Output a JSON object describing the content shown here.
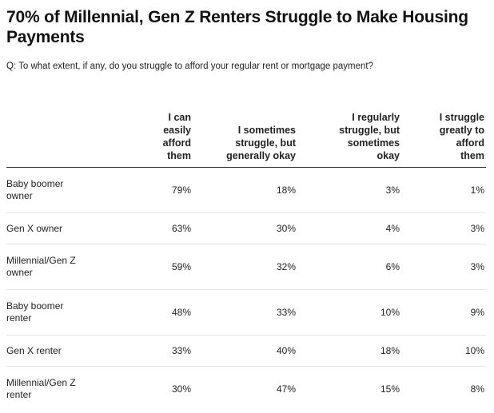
{
  "title": "70% of Millennial, Gen Z Renters Struggle to Make Housing Payments",
  "subtitle": "Q: To what extent, if any, do you struggle to afford your regular rent or mortgage payment?",
  "chart_data": {
    "type": "table",
    "title": "70% of Millennial, Gen Z Renters Struggle to Make Housing Payments",
    "subtitle": "Q: To what extent, if any, do you struggle to afford your regular rent or mortgage payment?",
    "columns": [
      "",
      "I can easily afford them",
      "I sometimes struggle, but generally okay",
      "I regularly struggle, but sometimes okay",
      "I struggle greatly to afford them"
    ],
    "categories": [
      "Baby boomer owner",
      "Gen X owner",
      "Millennial/Gen Z owner",
      "Baby boomer renter",
      "Gen X renter",
      "Millennial/Gen Z renter"
    ],
    "rows": [
      [
        "Baby boomer owner",
        "79%",
        "18%",
        "3%",
        "1%"
      ],
      [
        "Gen X owner",
        "63%",
        "30%",
        "4%",
        "3%"
      ],
      [
        "Millennial/Gen Z owner",
        "59%",
        "32%",
        "6%",
        "3%"
      ],
      [
        "Baby boomer renter",
        "48%",
        "33%",
        "10%",
        "9%"
      ],
      [
        "Gen X renter",
        "33%",
        "40%",
        "18%",
        "10%"
      ],
      [
        "Millennial/Gen Z renter",
        "30%",
        "47%",
        "15%",
        "8%"
      ]
    ],
    "series": [
      {
        "name": "I can easily afford them",
        "values": [
          79,
          63,
          59,
          48,
          33,
          30
        ]
      },
      {
        "name": "I sometimes struggle, but generally okay",
        "values": [
          18,
          30,
          32,
          33,
          40,
          47
        ]
      },
      {
        "name": "I regularly struggle, but sometimes okay",
        "values": [
          3,
          4,
          6,
          10,
          18,
          15
        ]
      },
      {
        "name": "I struggle greatly to afford them",
        "values": [
          1,
          3,
          3,
          9,
          10,
          8
        ]
      }
    ]
  }
}
